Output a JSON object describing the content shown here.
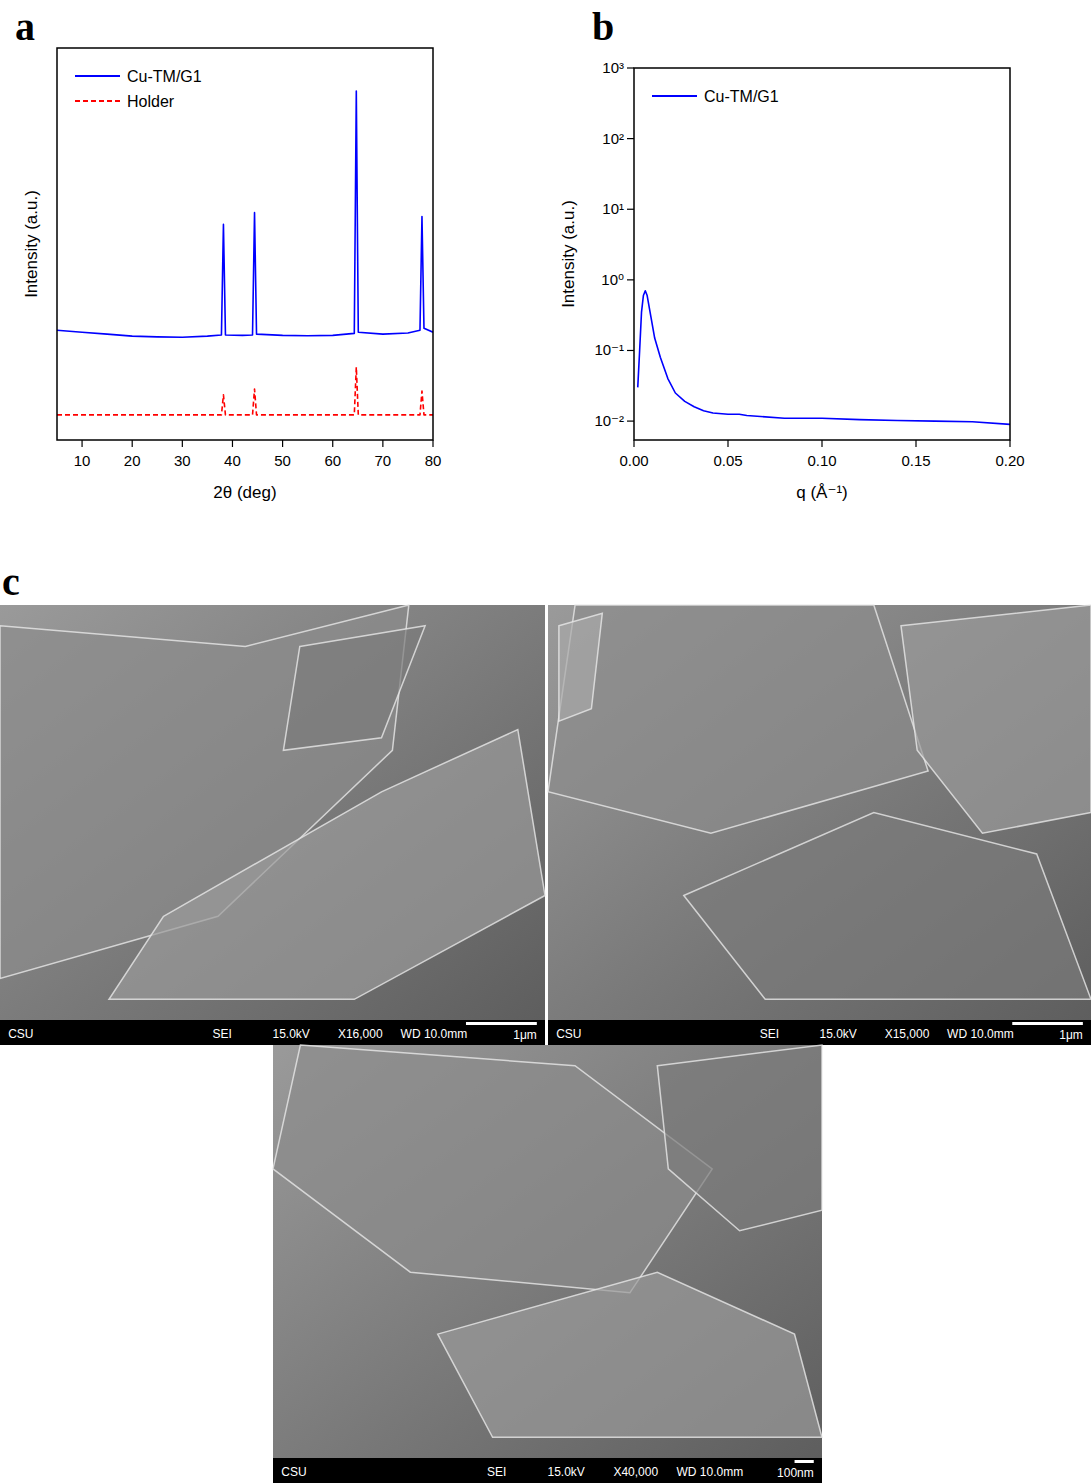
{
  "chart_data": [
    {
      "type": "line",
      "panel_label": "a",
      "x_label": "2θ (deg)",
      "y_label": "Intensity (a.u.)",
      "x": [
        5,
        10,
        15,
        20,
        25,
        30,
        35,
        37.8,
        38.2,
        38.6,
        42,
        44.0,
        44.4,
        44.8,
        50,
        55,
        60,
        64.3,
        64.7,
        65.1,
        70,
        75,
        77.4,
        77.8,
        78.2,
        80
      ],
      "series": [
        {
          "name": "Cu-TM/G1",
          "color": "#0000ff",
          "line_style": "solid",
          "values": [
            28,
            27.5,
            27,
            26.5,
            26.3,
            26.2,
            26.5,
            26.8,
            55,
            26.8,
            26.7,
            26.8,
            58,
            27,
            26.7,
            26.6,
            26.7,
            27.2,
            89,
            27.5,
            27,
            27.3,
            28,
            57,
            28.5,
            27.5
          ]
        },
        {
          "name": "Holder",
          "color": "#ff0000",
          "line_style": "dashed",
          "values": [
            6.4,
            6.4,
            6.4,
            6.4,
            6.4,
            6.4,
            6.4,
            6.4,
            11.5,
            6.4,
            6.4,
            6.4,
            13,
            6.4,
            6.4,
            6.4,
            6.4,
            6.4,
            18.6,
            6.4,
            6.4,
            6.4,
            6.4,
            12.5,
            6.4,
            6.4
          ]
        }
      ],
      "xlim": [
        5,
        80
      ],
      "ylim": [
        0,
        100
      ],
      "xticks": [
        10,
        20,
        30,
        40,
        50,
        60,
        70,
        80
      ],
      "tick_labels": "x",
      "legend": "upper left"
    },
    {
      "type": "line",
      "panel_label": "b",
      "x_label": "q (Å⁻¹)",
      "y_label": "Intensity (a.u.)",
      "x": [
        0.002,
        0.003,
        0.004,
        0.005,
        0.006,
        0.007,
        0.009,
        0.011,
        0.014,
        0.018,
        0.022,
        0.027,
        0.032,
        0.037,
        0.042,
        0.05,
        0.056,
        0.06,
        0.08,
        0.1,
        0.12,
        0.14,
        0.16,
        0.18,
        0.2
      ],
      "series": [
        {
          "name": "Cu-TM/G1",
          "color": "#0000ff",
          "line_style": "solid",
          "values": [
            0.03,
            0.1,
            0.35,
            0.6,
            0.7,
            0.6,
            0.3,
            0.15,
            0.08,
            0.04,
            0.025,
            0.019,
            0.016,
            0.014,
            0.013,
            0.0125,
            0.0125,
            0.012,
            0.011,
            0.011,
            0.0105,
            0.0102,
            0.01,
            0.0098,
            0.009
          ]
        }
      ],
      "log": "y",
      "xlim": [
        0,
        0.2
      ],
      "ylim": [
        0.0054,
        1000
      ],
      "xticks": [
        {
          "value": 0,
          "label": "0.00"
        },
        {
          "value": 0.05,
          "label": "0.05"
        },
        {
          "value": 0.1,
          "label": "0.10"
        },
        {
          "value": 0.15,
          "label": "0.15"
        },
        {
          "value": 0.2,
          "label": "0.20"
        }
      ],
      "yticks": [
        {
          "value": 0.01,
          "label": "10⁻²"
        },
        {
          "value": 0.1,
          "label": "10⁻¹"
        },
        {
          "value": 1,
          "label": "10⁰"
        },
        {
          "value": 10,
          "label": "10¹"
        },
        {
          "value": 100,
          "label": "10²"
        },
        {
          "value": 1000,
          "label": "10³"
        }
      ],
      "legend": "upper left"
    }
  ],
  "sem_panel": {
    "panel_label": "c",
    "images": [
      {
        "footer": [
          "CSU",
          "SEI",
          "15.0kV",
          "X16,000",
          "WD 10.0mm"
        ],
        "scale_bar": "1μm"
      },
      {
        "footer": [
          "CSU",
          "SEI",
          "15.0kV",
          "X15,000",
          "WD 10.0mm"
        ],
        "scale_bar": "1μm"
      },
      {
        "footer": [
          "CSU",
          "SEI",
          "15.0kV",
          "X40,000",
          "WD 10.0mm"
        ],
        "scale_bar": "100nm"
      }
    ]
  }
}
